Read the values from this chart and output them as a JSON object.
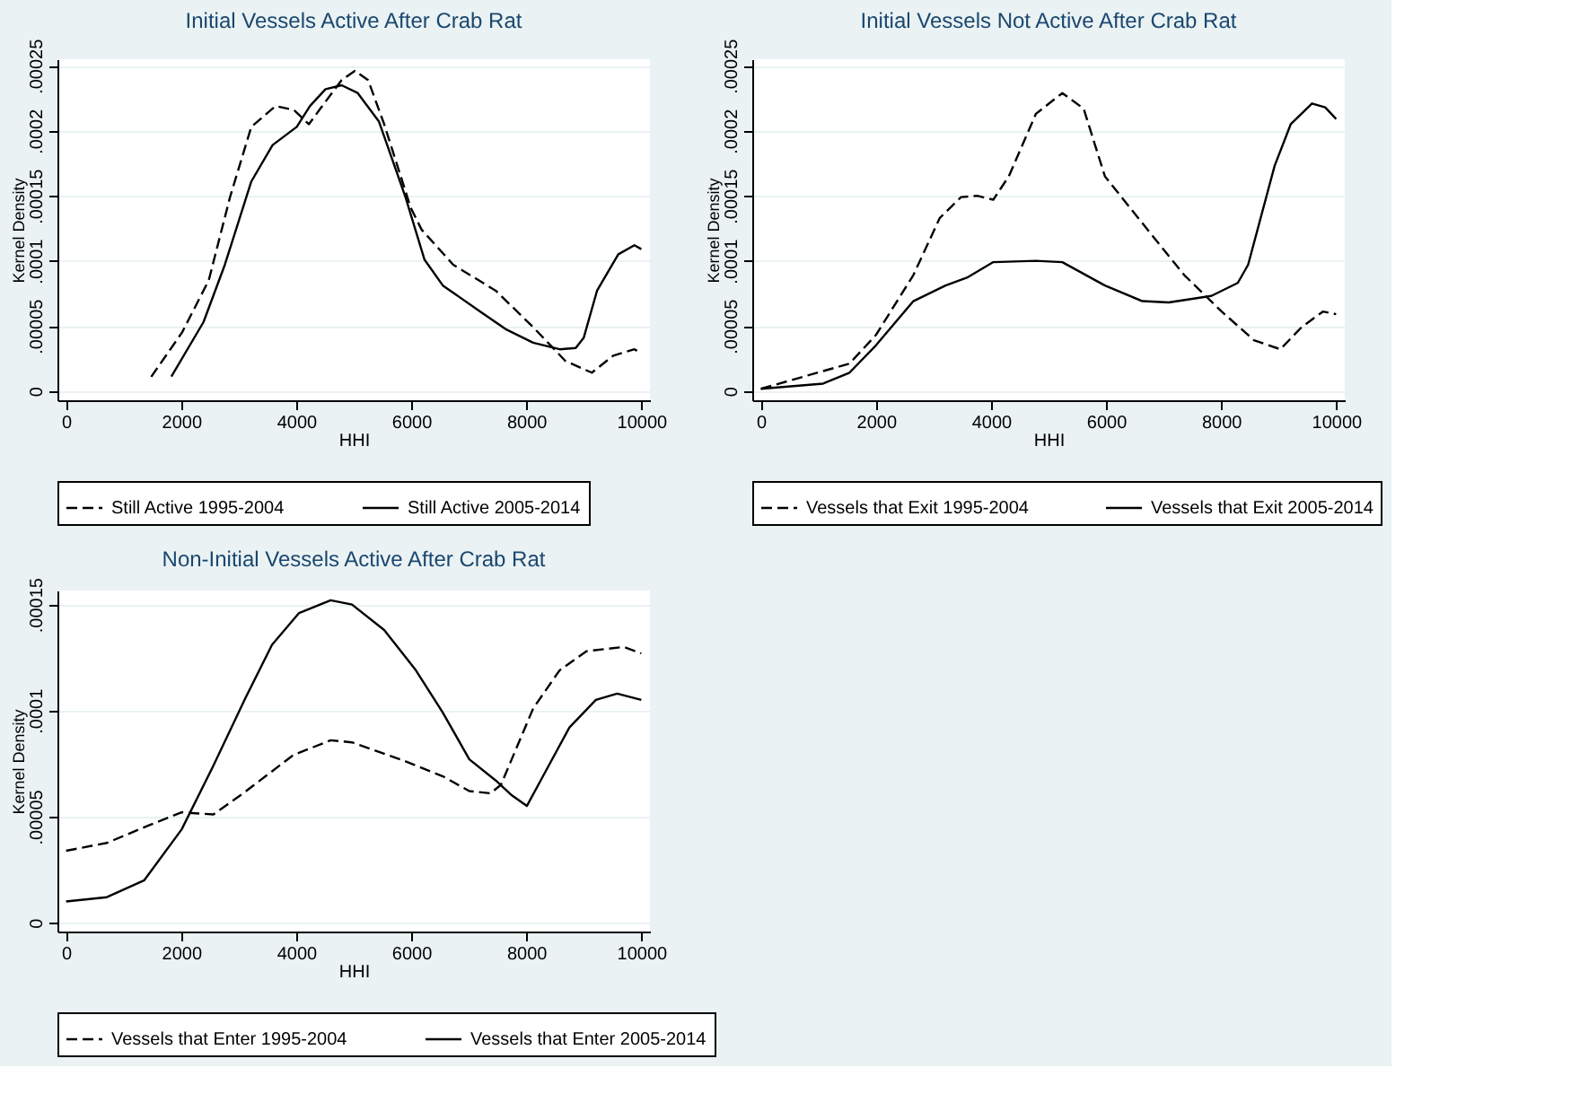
{
  "chart_data": [
    {
      "type": "line",
      "title": "Initial Vessels Active After Crab Rat",
      "xlabel": "HHI",
      "ylabel": "Kernel Density",
      "xlim": [
        -150,
        10150
      ],
      "ylim": [
        -7.2e-06,
        0.000255
      ],
      "xticks": [
        0,
        2000,
        4000,
        6000,
        8000,
        10000
      ],
      "yticks": [
        {
          "value": 0,
          "label": "0"
        },
        {
          "value": 5e-05,
          "label": ".00005"
        },
        {
          "value": 0.0001,
          "label": ".0001"
        },
        {
          "value": 0.00015,
          "label": ".00015"
        },
        {
          "value": 0.0002,
          "label": ".0002"
        },
        {
          "value": 0.00025,
          "label": ".00025"
        }
      ],
      "grid": "y",
      "legend": "bottom",
      "series": [
        {
          "name": "Still Active 1995-2004",
          "color": "#000000",
          "line_style": "dashed",
          "x": [
            1480,
            2017,
            2480,
            2850,
            3220,
            3640,
            3960,
            4220,
            4420,
            4790,
            5020,
            5250,
            5530,
            5990,
            6180,
            6730,
            7470,
            8120,
            8680,
            9140,
            9510,
            9880,
            10000
          ],
          "values": [
            1.08e-05,
            4.5e-05,
            8.5e-05,
            0.000149,
            0.000203,
            0.000219,
            0.000216,
            0.000205,
            0.000217,
            0.000239,
            0.000246,
            0.000239,
            0.000205,
            0.000141,
            0.000124,
            9.7e-05,
            7.7e-05,
            4.9e-05,
            2.3e-05,
            1.4e-05,
            2.7e-05,
            3.2e-05,
            2.9e-05
          ]
        },
        {
          "name": "Still Active 2005-2014",
          "color": "#000000",
          "line_style": "solid",
          "x": [
            1830,
            2390,
            2760,
            3220,
            3590,
            4010,
            4240,
            4510,
            4790,
            5070,
            5440,
            5900,
            6230,
            6550,
            7200,
            7660,
            8120,
            8580,
            8860,
            9000,
            9230,
            9600,
            9880,
            10000
          ],
          "values": [
            1.1e-05,
            5.3e-05,
            9.7e-05,
            0.000161,
            0.000189,
            0.000203,
            0.000219,
            0.000232,
            0.000235,
            0.000229,
            0.000207,
            0.000149,
            0.000101,
            8.1e-05,
            6.1e-05,
            4.7e-05,
            3.7e-05,
            3.2e-05,
            3.3e-05,
            4.1e-05,
            7.7e-05,
            0.000105,
            0.000112,
            0.000109
          ]
        }
      ]
    },
    {
      "type": "line",
      "title": "Initial Vessels Not Active After Crab Rat",
      "xlabel": "HHI",
      "ylabel": "Kernel Density",
      "xlim": [
        -150,
        10150
      ],
      "ylim": [
        -7.2e-06,
        0.000255
      ],
      "xticks": [
        0,
        2000,
        4000,
        6000,
        8000,
        10000
      ],
      "yticks": [
        {
          "value": 0,
          "label": "0"
        },
        {
          "value": 5e-05,
          "label": ".00005"
        },
        {
          "value": 0.0001,
          "label": ".0001"
        },
        {
          "value": 0.00015,
          "label": ".00015"
        },
        {
          "value": 0.0002,
          "label": ".0002"
        },
        {
          "value": 0.00025,
          "label": ".00025"
        }
      ],
      "grid": "y",
      "legend": "bottom",
      "series": [
        {
          "name": "Vessels that Exit 1995-2004",
          "color": "#000000",
          "line_style": "dashed",
          "x": [
            0,
            1540,
            2000,
            2650,
            3110,
            3480,
            3760,
            4040,
            4310,
            4780,
            5240,
            5610,
            5980,
            6630,
            7360,
            8010,
            8570,
            9030,
            9400,
            9770,
            10000
          ],
          "values": [
            1.6e-06,
            2.1e-05,
            4.3e-05,
            8.9e-05,
            0.000133,
            0.000149,
            0.00015,
            0.000147,
            0.000165,
            0.000213,
            0.000229,
            0.000217,
            0.000165,
            0.000129,
            8.9e-05,
            6.1e-05,
            3.9e-05,
            3.2e-05,
            4.9e-05,
            6.1e-05,
            5.9e-05
          ]
        },
        {
          "name": "Vessels that Exit 2005-2014",
          "color": "#000000",
          "line_style": "solid",
          "x": [
            0,
            1080,
            1540,
            2000,
            2650,
            3210,
            3580,
            4040,
            4780,
            5240,
            5980,
            6630,
            7090,
            7830,
            8290,
            8470,
            8930,
            9210,
            9580,
            9810,
            10000
          ],
          "values": [
            1.6e-06,
            5.6e-06,
            1.4e-05,
            3.5e-05,
            6.9e-05,
            8.1e-05,
            8.7e-05,
            9.9e-05,
            0.0001,
            9.9e-05,
            8.1e-05,
            6.9e-05,
            6.8e-05,
            7.3e-05,
            8.3e-05,
            9.7e-05,
            0.000173,
            0.000205,
            0.000221,
            0.000218,
            0.000209
          ]
        }
      ]
    },
    {
      "type": "line",
      "title": "Non-Initial Vessels Active After Crab Rat",
      "xlabel": "HHI",
      "ylabel": "Kernel Density",
      "xlim": [
        -150,
        10150
      ],
      "ylim": [
        -4.2e-06,
        0.0001566
      ],
      "xticks": [
        0,
        2000,
        4000,
        6000,
        8000,
        10000
      ],
      "yticks": [
        {
          "value": 0,
          "label": "0"
        },
        {
          "value": 5e-05,
          "label": ".00005"
        },
        {
          "value": 0.0001,
          "label": ".0001"
        },
        {
          "value": 0.00015,
          "label": ".00015"
        }
      ],
      "grid": "y",
      "legend": "bottom",
      "series": [
        {
          "name": "Vessels that Enter 1995-2004",
          "color": "#000000",
          "line_style": "dashed",
          "x": [
            0,
            710,
            1450,
            2010,
            2560,
            3030,
            3950,
            4600,
            4970,
            5810,
            6550,
            7010,
            7380,
            7560,
            8120,
            8580,
            9050,
            9690,
            10000
          ],
          "values": [
            3.39e-05,
            3.76e-05,
            4.6e-05,
            5.2e-05,
            5.1e-05,
            6e-05,
            7.9e-05,
            8.6e-05,
            8.5e-05,
            7.7e-05,
            6.9e-05,
            6.2e-05,
            6.1e-05,
            6.5e-05,
            0.000101,
            0.000119,
            0.000128,
            0.00013,
            0.000127
          ]
        },
        {
          "name": "Vessels that Enter 2005-2014",
          "color": "#000000",
          "line_style": "solid",
          "x": [
            0,
            710,
            1360,
            2010,
            2560,
            3120,
            3580,
            4050,
            4600,
            4970,
            5530,
            6080,
            6550,
            7010,
            7470,
            7750,
            8010,
            8290,
            8750,
            9210,
            9580,
            10000
          ],
          "values": [
            1e-05,
            1.2e-05,
            2e-05,
            4.4e-05,
            7.4e-05,
            0.000106,
            0.000131,
            0.000146,
            0.000152,
            0.00015,
            0.000138,
            0.000119,
            9.9e-05,
            7.7e-05,
            6.7e-05,
            6e-05,
            5.5e-05,
            6.9e-05,
            9.2e-05,
            0.000105,
            0.000108,
            0.000105
          ]
        }
      ]
    }
  ]
}
